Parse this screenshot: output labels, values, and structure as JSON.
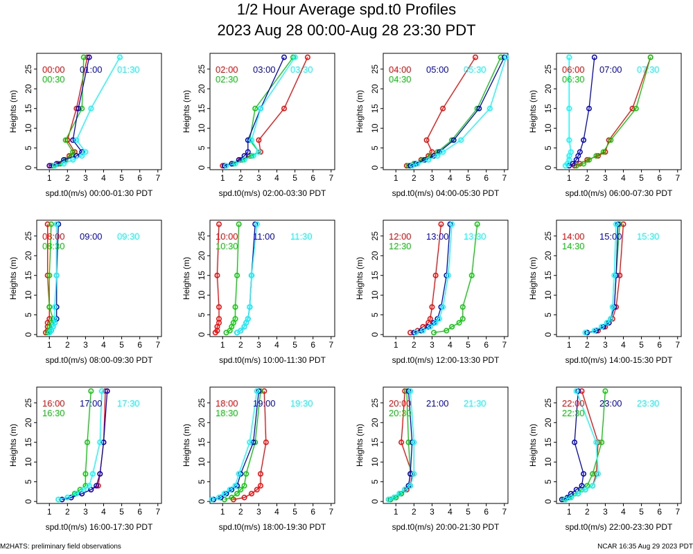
{
  "title": "1/2 Hour Average spd.t0 Profiles",
  "subtitle": "2023 Aug 28 00:00-Aug 28 23:30 PDT",
  "footer_left": "M2HATS: preliminary field observations",
  "footer_right": "NCAR 16:35 Aug 29 2023 PDT",
  "series_colors": [
    "#ff0000",
    "#00cc00",
    "#0000cc",
    "#00ffff"
  ],
  "chart_data": {
    "type": "line",
    "heights": [
      0.5,
      1,
      2,
      3,
      4,
      7,
      15,
      28
    ],
    "ylabel": "Heights (m)",
    "ylim": [
      -0.5,
      29
    ],
    "xlim": [
      0.3,
      7.2
    ],
    "xticks": [
      1,
      2,
      3,
      4,
      5,
      6,
      7
    ],
    "yticks": [
      0,
      5,
      10,
      15,
      20,
      25
    ],
    "panels": [
      {
        "xlabel": "spd.t0(m/s) 00:00-01:30 PDT",
        "series": [
          {
            "name": "00:00",
            "values": [
              1.1,
              1.5,
              1.9,
              2.1,
              2.4,
              2.0,
              2.5,
              3.1
            ]
          },
          {
            "name": "00:30",
            "values": [
              1.2,
              1.6,
              1.9,
              2.2,
              2.3,
              1.9,
              2.8,
              2.9
            ]
          },
          {
            "name": "01:00",
            "values": [
              1.0,
              1.4,
              1.8,
              2.5,
              2.8,
              2.3,
              2.6,
              3.2
            ]
          },
          {
            "name": "01:30",
            "values": [
              1.3,
              1.8,
              2.3,
              2.8,
              3.0,
              2.5,
              3.3,
              4.9
            ]
          }
        ]
      },
      {
        "xlabel": "spd.t0(m/s) 02:00-03:30 PDT",
        "series": [
          {
            "name": "02:00",
            "values": [
              1.0,
              1.5,
              2.0,
              2.5,
              3.1,
              3.0,
              4.4,
              5.7
            ]
          },
          {
            "name": "02:30",
            "values": [
              1.1,
              1.6,
              2.1,
              2.6,
              3.0,
              2.5,
              2.8,
              4.9
            ]
          },
          {
            "name": "03:00",
            "values": [
              1.1,
              1.5,
              1.9,
              2.2,
              2.4,
              2.4,
              3.1,
              4.4
            ]
          },
          {
            "name": "03:30",
            "values": [
              1.2,
              1.7,
              2.2,
              2.7,
              3.0,
              2.6,
              3.1,
              5.0
            ]
          }
        ]
      },
      {
        "xlabel": "spd.t0(m/s) 04:00-05:30 PDT",
        "series": [
          {
            "name": "04:00",
            "values": [
              1.6,
              2.0,
              2.4,
              2.8,
              3.0,
              2.7,
              3.6,
              5.4
            ]
          },
          {
            "name": "04:30",
            "values": [
              1.7,
              2.0,
              2.5,
              2.9,
              3.3,
              4.1,
              5.5,
              6.8
            ]
          },
          {
            "name": "05:00",
            "values": [
              1.8,
              2.1,
              2.6,
              3.1,
              3.4,
              4.2,
              5.6,
              7.0
            ]
          },
          {
            "name": "05:30",
            "values": [
              1.9,
              2.2,
              2.8,
              3.3,
              3.6,
              4.6,
              6.2,
              7.1
            ]
          }
        ]
      },
      {
        "xlabel": "spd.t0(m/s) 06:00-07:30 PDT",
        "series": [
          {
            "name": "06:00",
            "values": [
              1.3,
              1.6,
              2.0,
              2.6,
              3.0,
              3.2,
              4.5,
              5.5
            ]
          },
          {
            "name": "06:30",
            "values": [
              1.4,
              1.8,
              2.1,
              2.5,
              2.9,
              3.3,
              4.7,
              5.5
            ]
          },
          {
            "name": "07:00",
            "values": [
              1.0,
              1.2,
              1.4,
              1.5,
              1.6,
              1.8,
              2.1,
              2.4
            ]
          },
          {
            "name": "07:30",
            "values": [
              0.8,
              0.9,
              1.0,
              1.0,
              1.1,
              1.0,
              1.0,
              1.0
            ]
          }
        ]
      },
      {
        "xlabel": "spd.t0(m/s) 08:00-09:30 PDT",
        "series": [
          {
            "name": "08:00",
            "values": [
              0.8,
              0.9,
              0.9,
              0.9,
              1.0,
              1.0,
              0.9,
              0.9
            ]
          },
          {
            "name": "08:30",
            "values": [
              0.9,
              1.0,
              1.0,
              1.1,
              1.2,
              1.0,
              1.0,
              1.1
            ]
          },
          {
            "name": "09:00",
            "values": [
              1.0,
              1.1,
              1.2,
              1.3,
              1.4,
              1.4,
              1.4,
              1.5
            ]
          },
          {
            "name": "09:30",
            "values": [
              1.0,
              1.1,
              1.2,
              1.3,
              1.3,
              1.3,
              1.4,
              1.4
            ]
          }
        ]
      },
      {
        "xlabel": "spd.t0(m/s) 10:00-11:30 PDT",
        "series": [
          {
            "name": "10:00",
            "values": [
              0.6,
              0.7,
              0.7,
              0.8,
              0.8,
              0.8,
              0.7,
              0.8
            ]
          },
          {
            "name": "10:30",
            "values": [
              1.2,
              1.4,
              1.5,
              1.6,
              1.7,
              1.7,
              1.8,
              1.9
            ]
          },
          {
            "name": "11:00",
            "values": [
              1.8,
              2.0,
              2.2,
              2.3,
              2.4,
              2.5,
              2.6,
              2.8
            ]
          },
          {
            "name": "11:30",
            "values": [
              1.8,
              2.0,
              2.2,
              2.3,
              2.4,
              2.5,
              2.6,
              2.9
            ]
          }
        ]
      },
      {
        "xlabel": "spd.t0(m/s) 12:00-13:30 PDT",
        "series": [
          {
            "name": "12:00",
            "values": [
              1.8,
              2.2,
              2.5,
              2.8,
              2.9,
              3.0,
              3.2,
              3.5
            ]
          },
          {
            "name": "12:30",
            "values": [
              3.1,
              3.8,
              4.1,
              4.5,
              4.7,
              4.7,
              5.2,
              5.5
            ]
          },
          {
            "name": "13:00",
            "values": [
              2.0,
              2.4,
              2.8,
              3.1,
              3.3,
              3.5,
              3.8,
              4.0
            ]
          },
          {
            "name": "13:30",
            "values": [
              2.1,
              2.5,
              2.9,
              3.2,
              3.4,
              3.6,
              3.9,
              4.1
            ]
          }
        ]
      },
      {
        "xlabel": "spd.t0(m/s) 14:00-15:30 PDT",
        "series": [
          {
            "name": "14:00",
            "values": [
              2.0,
              2.6,
              3.0,
              3.2,
              3.4,
              3.6,
              3.8,
              4.0
            ]
          },
          {
            "name": "14:30",
            "values": [
              2.0,
              2.5,
              2.9,
              3.1,
              3.3,
              3.5,
              3.6,
              3.8
            ]
          },
          {
            "name": "15:00",
            "values": [
              2.0,
              2.5,
              2.9,
              3.2,
              3.3,
              3.5,
              3.6,
              3.7
            ]
          },
          {
            "name": "15:30",
            "values": [
              1.9,
              2.4,
              2.8,
              3.1,
              3.3,
              3.4,
              3.5,
              3.6
            ]
          }
        ]
      },
      {
        "xlabel": "spd.t0(m/s) 16:00-17:30 PDT",
        "series": [
          {
            "name": "16:00",
            "values": [
              1.7,
              2.2,
              2.8,
              3.3,
              3.7,
              3.8,
              4.0,
              4.1
            ]
          },
          {
            "name": "16:30",
            "values": [
              1.5,
              2.0,
              2.4,
              2.7,
              3.0,
              3.0,
              3.1,
              3.3
            ]
          },
          {
            "name": "17:00",
            "values": [
              1.7,
              2.2,
              2.8,
              3.3,
              3.6,
              3.8,
              4.0,
              4.2
            ]
          },
          {
            "name": "17:30",
            "values": [
              1.5,
              2.0,
              2.5,
              2.9,
              3.2,
              3.4,
              3.8,
              3.9
            ]
          }
        ]
      },
      {
        "xlabel": "spd.t0(m/s) 18:00-19:30 PDT",
        "series": [
          {
            "name": "18:00",
            "values": [
              1.6,
              2.2,
              2.6,
              2.9,
              3.1,
              3.1,
              3.4,
              3.3
            ]
          },
          {
            "name": "18:30",
            "values": [
              1.1,
              1.5,
              1.8,
              2.0,
              2.2,
              2.3,
              2.8,
              3.1
            ]
          },
          {
            "name": "19:00",
            "values": [
              0.5,
              0.9,
              1.2,
              1.5,
              1.8,
              2.0,
              2.7,
              3.0
            ]
          },
          {
            "name": "19:30",
            "values": [
              0.4,
              0.8,
              1.1,
              1.4,
              1.7,
              1.9,
              2.5,
              2.9
            ]
          }
        ]
      },
      {
        "xlabel": "spd.t0(m/s) 20:00-21:30 PDT",
        "series": [
          {
            "name": "20:00",
            "values": [
              0.7,
              1.0,
              1.3,
              1.6,
              1.8,
              1.9,
              1.3,
              1.5
            ]
          },
          {
            "name": "20:30",
            "values": [
              0.7,
              1.0,
              1.3,
              1.5,
              1.7,
              1.8,
              1.7,
              1.6
            ]
          },
          {
            "name": "21:00",
            "values": [
              0.6,
              0.9,
              1.2,
              1.5,
              1.7,
              1.8,
              1.9,
              1.7
            ]
          },
          {
            "name": "21:30",
            "values": [
              0.6,
              0.9,
              1.2,
              1.5,
              1.8,
              2.0,
              2.0,
              1.8
            ]
          }
        ]
      },
      {
        "xlabel": "spd.t0(m/s) 22:00-23:30 PDT",
        "series": [
          {
            "name": "22:00",
            "values": [
              0.8,
              1.1,
              1.5,
              1.9,
              2.3,
              2.5,
              2.6,
              1.7
            ]
          },
          {
            "name": "22:30",
            "values": [
              0.7,
              1.0,
              1.3,
              1.7,
              2.0,
              2.3,
              2.8,
              3.0
            ]
          },
          {
            "name": "23:00",
            "values": [
              0.6,
              0.9,
              1.1,
              1.4,
              1.7,
              1.8,
              1.3,
              1.5
            ]
          },
          {
            "name": "23:30",
            "values": [
              0.8,
              1.1,
              1.5,
              1.9,
              2.3,
              2.6,
              2.5,
              1.4
            ]
          }
        ]
      }
    ]
  }
}
